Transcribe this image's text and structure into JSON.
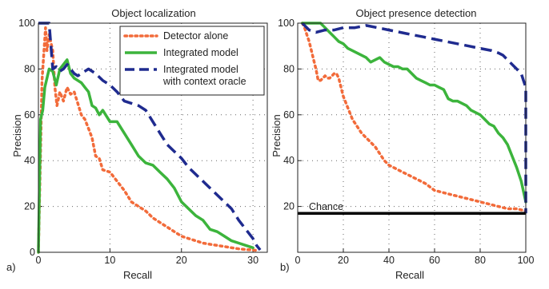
{
  "chart_data": [
    {
      "type": "line",
      "panel_label": "a)",
      "title": "Object localization",
      "xlabel": "Recall",
      "ylabel": "Precision",
      "xlim": [
        0,
        32
      ],
      "ylim": [
        0,
        100
      ],
      "xticks": [
        0,
        10,
        20,
        30
      ],
      "yticks": [
        0,
        20,
        40,
        60,
        80,
        100
      ],
      "grid": "dotted",
      "legend_position": "top-right",
      "series": [
        {
          "name": "Detector alone",
          "color": "#f26b3a",
          "style": "dotted",
          "x": [
            0,
            0.5,
            1.0,
            1.2,
            1.5,
            2.0,
            2.3,
            2.6,
            3.0,
            3.5,
            4.0,
            4.5,
            5.0,
            5.5,
            6.0,
            6.5,
            7.0,
            7.5,
            8.0,
            8.5,
            9.0,
            10.0,
            11.0,
            12.0,
            13.0,
            14.0,
            15.0,
            16.0,
            17.0,
            18.0,
            19.0,
            20.0,
            21.0,
            22.0,
            23.0,
            24.0,
            25.0,
            26.0,
            27.0,
            28.0,
            29.0,
            30.0,
            30.5
          ],
          "y": [
            0,
            75,
            98,
            88,
            95,
            88,
            72,
            64,
            70,
            66,
            72,
            69,
            70,
            65,
            60,
            58,
            54,
            50,
            42,
            41,
            36,
            35,
            31,
            27,
            22,
            20,
            18,
            15,
            13,
            11,
            9,
            7,
            6,
            5,
            4,
            3.5,
            3,
            2.5,
            2,
            1.5,
            1.2,
            1,
            0.8
          ]
        },
        {
          "name": "Integrated model",
          "color": "#3cb43c",
          "style": "solid",
          "x": [
            0,
            0.3,
            0.6,
            0.9,
            1.2,
            1.5,
            2.0,
            2.5,
            3.0,
            3.5,
            4.0,
            4.5,
            5.0,
            5.5,
            6.0,
            6.5,
            7.0,
            7.5,
            8.0,
            8.5,
            9.0,
            10.0,
            11.0,
            12.0,
            13.0,
            14.0,
            15.0,
            16.0,
            17.0,
            18.0,
            19.0,
            20.0,
            21.0,
            22.0,
            23.0,
            24.0,
            25.0,
            26.0,
            27.0,
            28.0,
            29.0,
            30.0
          ],
          "y": [
            0,
            58,
            62,
            72,
            76,
            80,
            79,
            73,
            80,
            82,
            84,
            78,
            76,
            75,
            74,
            72,
            70,
            64,
            63,
            60,
            62,
            57,
            57,
            52,
            47,
            42,
            39,
            38,
            35,
            32,
            28,
            22,
            19,
            16,
            14,
            10,
            9,
            7,
            5,
            4,
            3,
            2
          ]
        },
        {
          "name": "Integrated model\nwith context oracle",
          "color": "#1f2b8f",
          "style": "dashed",
          "x": [
            0,
            0.2,
            0.5,
            1.0,
            1.5,
            2.0,
            2.5,
            3.0,
            3.5,
            4.0,
            4.5,
            5.0,
            5.5,
            6.0,
            7.0,
            8.0,
            9.0,
            10.0,
            11.0,
            12.0,
            13.0,
            14.0,
            15.0,
            16.0,
            17.0,
            18.0,
            19.0,
            20.0,
            21.0,
            22.0,
            23.0,
            24.0,
            25.0,
            26.0,
            27.0,
            28.0,
            29.0,
            30.0,
            30.5,
            31.0
          ],
          "y": [
            100,
            100,
            100,
            100,
            100,
            80,
            81,
            79,
            80,
            82,
            80,
            78,
            77,
            78,
            80,
            78,
            75,
            73,
            70,
            66,
            65,
            64,
            62,
            57,
            52,
            47,
            44,
            41,
            37,
            34,
            31,
            28,
            25,
            22,
            19,
            14,
            10,
            6,
            3,
            1
          ]
        }
      ]
    },
    {
      "type": "line",
      "panel_label": "b)",
      "title": "Object presence detection",
      "xlabel": "Recall",
      "ylabel": "Precision",
      "xlim": [
        0,
        100
      ],
      "ylim": [
        0,
        100
      ],
      "xticks": [
        0,
        20,
        40,
        60,
        80,
        100
      ],
      "yticks": [
        20,
        40,
        60,
        80,
        100
      ],
      "grid": "dotted",
      "chance_level": 17,
      "chance_label": "Chance",
      "series": [
        {
          "name": "Detector alone",
          "color": "#f26b3a",
          "style": "dotted",
          "x": [
            2,
            3,
            4,
            5,
            6,
            7,
            8,
            9,
            10,
            11,
            12,
            13,
            14,
            15,
            16,
            17,
            18,
            19,
            20,
            22,
            24,
            26,
            28,
            30,
            32,
            34,
            36,
            38,
            40,
            44,
            48,
            52,
            56,
            60,
            64,
            68,
            72,
            76,
            80,
            84,
            88,
            92,
            96,
            100
          ],
          "y": [
            100,
            98,
            95,
            92,
            88,
            84,
            80,
            75,
            75,
            76,
            77,
            76,
            76,
            77,
            78,
            78,
            76,
            72,
            68,
            63,
            58,
            55,
            52,
            50,
            48,
            46,
            43,
            40,
            38,
            36,
            34,
            32,
            30,
            27,
            26,
            25,
            24,
            23,
            22,
            21,
            20,
            19,
            19,
            18
          ]
        },
        {
          "name": "Integrated model",
          "color": "#3cb43c",
          "style": "solid",
          "x": [
            2,
            4,
            6,
            8,
            10,
            12,
            14,
            16,
            18,
            20,
            22,
            24,
            26,
            28,
            30,
            32,
            34,
            36,
            38,
            40,
            42,
            44,
            46,
            48,
            50,
            52,
            54,
            56,
            58,
            60,
            62,
            64,
            66,
            68,
            70,
            72,
            74,
            76,
            78,
            80,
            82,
            84,
            86,
            88,
            90,
            92,
            94,
            96,
            98,
            100
          ],
          "y": [
            100,
            100,
            100,
            100,
            100,
            98,
            96,
            94,
            92,
            91,
            89,
            88,
            87,
            86,
            85,
            83,
            84,
            85,
            83,
            82,
            81,
            81,
            80,
            80,
            78,
            76,
            75,
            74,
            73,
            73,
            72,
            71,
            67,
            66,
            66,
            65,
            64,
            62,
            61,
            60,
            58,
            56,
            55,
            52,
            50,
            47,
            42,
            37,
            31,
            22
          ]
        },
        {
          "name": "Integrated model with context oracle",
          "color": "#1f2b8f",
          "style": "dashed",
          "x": [
            2,
            5,
            8,
            12,
            16,
            20,
            25,
            30,
            35,
            40,
            45,
            50,
            55,
            60,
            65,
            70,
            75,
            80,
            85,
            88,
            90,
            92,
            94,
            96,
            98,
            99,
            100,
            100
          ],
          "y": [
            100,
            97,
            96,
            97,
            97,
            98,
            98,
            99,
            98,
            97,
            96,
            95,
            94,
            93,
            92,
            91,
            90,
            89,
            88,
            87,
            86,
            84,
            82,
            80,
            78,
            75,
            72,
            17
          ]
        }
      ]
    }
  ]
}
